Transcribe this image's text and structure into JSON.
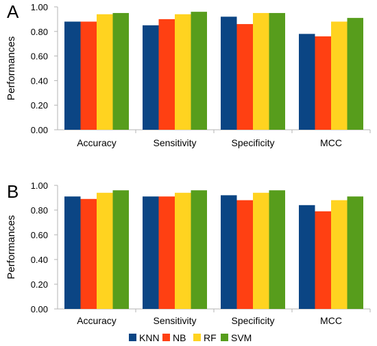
{
  "chart_data": [
    {
      "type": "bar",
      "panel": "A",
      "ylabel": "Performances",
      "categories": [
        "Accuracy",
        "Sensitivity",
        "Specificity",
        "MCC"
      ],
      "yticks": [
        "0.00",
        "0.20",
        "0.40",
        "0.60",
        "0.80",
        "1.00"
      ],
      "ylim": [
        0,
        1
      ],
      "series": [
        {
          "name": "KNN",
          "values": [
            0.88,
            0.85,
            0.92,
            0.78
          ]
        },
        {
          "name": "NB",
          "values": [
            0.88,
            0.9,
            0.86,
            0.76
          ]
        },
        {
          "name": "RF",
          "values": [
            0.94,
            0.94,
            0.95,
            0.88
          ]
        },
        {
          "name": "SVM",
          "values": [
            0.95,
            0.96,
            0.95,
            0.91
          ]
        }
      ]
    },
    {
      "type": "bar",
      "panel": "B",
      "ylabel": "Performances",
      "categories": [
        "Accuracy",
        "Sensitivity",
        "Specificity",
        "MCC"
      ],
      "yticks": [
        "0.00",
        "0.20",
        "0.40",
        "0.60",
        "0.80",
        "1.00"
      ],
      "ylim": [
        0,
        1
      ],
      "series": [
        {
          "name": "KNN",
          "values": [
            0.91,
            0.91,
            0.92,
            0.84
          ]
        },
        {
          "name": "NB",
          "values": [
            0.89,
            0.91,
            0.88,
            0.79
          ]
        },
        {
          "name": "RF",
          "values": [
            0.94,
            0.94,
            0.94,
            0.88
          ]
        },
        {
          "name": "SVM",
          "values": [
            0.96,
            0.96,
            0.96,
            0.91
          ]
        }
      ]
    }
  ],
  "legend": {
    "placement": "bottom-center",
    "entries": [
      "KNN",
      "NB",
      "RF",
      "SVM"
    ]
  },
  "colors": {
    "KNN": "#0b4584",
    "NB": "#ff4012",
    "RF": "#ffd320",
    "SVM": "#579d1c",
    "axis": "#b3b3b3"
  }
}
